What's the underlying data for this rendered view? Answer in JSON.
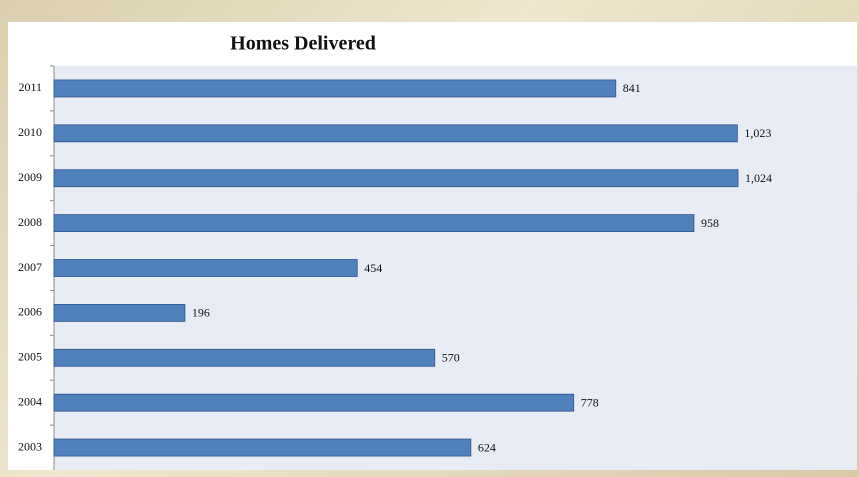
{
  "chart_data": {
    "type": "bar",
    "orientation": "horizontal",
    "title": "Homes Delivered",
    "categories": [
      "2011",
      "2010",
      "2009",
      "2008",
      "2007",
      "2006",
      "2005",
      "2004",
      "2003"
    ],
    "values": [
      841,
      1023,
      1024,
      958,
      454,
      196,
      570,
      778,
      624
    ],
    "value_labels": [
      "841",
      "1,023",
      "1,024",
      "958",
      "454",
      "196",
      "570",
      "778",
      "624"
    ],
    "color": "#4f81bd"
  }
}
